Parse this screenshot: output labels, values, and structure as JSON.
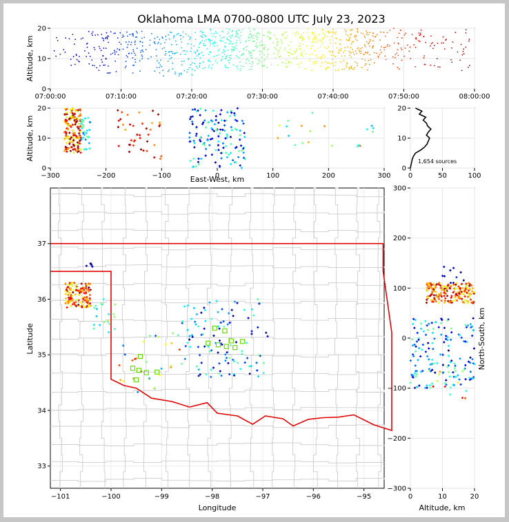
{
  "title": "Oklahoma LMA 0700-0800 UTC July 23, 2023",
  "source_count_label": "1,654 sources",
  "colors": {
    "state_border": "#e00000",
    "county_lines": "#c8c8c8",
    "station_marker": "#66dd00",
    "frame_bg": "#c6c6c6"
  },
  "chart_data": [
    {
      "id": "time-altitude",
      "type": "scatter",
      "xlabel": "",
      "ylabel": "Altitude, km",
      "x_ticks": [
        "07:00:00",
        "07:10:00",
        "07:20:00",
        "07:30:00",
        "07:40:00",
        "07:50:00",
        "08:00:00"
      ],
      "xlim_minutes": [
        0,
        60
      ],
      "y_ticks": [
        "0",
        "10",
        "20"
      ],
      "ylim": [
        0,
        20
      ],
      "color_by": "time (blue → red)",
      "clusters": [
        {
          "t_range": [
            0,
            5
          ],
          "alt_range": [
            6,
            18
          ],
          "count": 25
        },
        {
          "t_range": [
            5,
            15
          ],
          "alt_range": [
            5,
            19
          ],
          "count": 140
        },
        {
          "t_range": [
            15,
            21
          ],
          "alt_range": [
            4,
            19
          ],
          "count": 110
        },
        {
          "t_range": [
            21,
            29
          ],
          "alt_range": [
            6,
            20
          ],
          "count": 230
        },
        {
          "t_range": [
            29,
            36
          ],
          "alt_range": [
            7,
            19
          ],
          "count": 160
        },
        {
          "t_range": [
            36,
            45
          ],
          "alt_range": [
            6,
            20
          ],
          "count": 220
        },
        {
          "t_range": [
            45,
            53
          ],
          "alt_range": [
            6,
            20
          ],
          "count": 90
        },
        {
          "t_range": [
            53,
            60
          ],
          "alt_range": [
            5,
            20
          ],
          "count": 40
        }
      ]
    },
    {
      "id": "east-west-altitude",
      "type": "scatter",
      "xlabel": "East-West, km",
      "ylabel": "Altitude, km",
      "x_ticks": [
        "−300",
        "−200",
        "−100",
        "0",
        "100",
        "200",
        "300"
      ],
      "xlim": [
        -300,
        300
      ],
      "y_ticks": [
        "0",
        "10",
        "20"
      ],
      "ylim": [
        0,
        20
      ],
      "clusters": [
        {
          "ew_range": [
            -275,
            -245
          ],
          "alt_range": [
            5,
            20
          ]
        },
        {
          "ew_range": [
            -245,
            -230
          ],
          "alt_range": [
            5,
            17
          ]
        },
        {
          "ew_range": [
            -180,
            -100
          ],
          "alt_range": [
            3,
            20
          ]
        },
        {
          "ew_range": [
            -50,
            50
          ],
          "alt_range": [
            0,
            20
          ]
        },
        {
          "ew_range": [
            100,
            290
          ],
          "alt_range": [
            5,
            20
          ]
        }
      ]
    },
    {
      "id": "altitude-histogram",
      "type": "line",
      "xlim": [
        0,
        100
      ],
      "x_ticks": [
        "0",
        "50",
        "100"
      ],
      "ylim": [
        0,
        20
      ],
      "y_ticks": [
        "0",
        "10",
        "20"
      ],
      "annotation": "1,654 sources",
      "profile": [
        [
          0,
          0
        ],
        [
          1,
          1
        ],
        [
          2,
          2
        ],
        [
          3,
          3
        ],
        [
          5,
          4
        ],
        [
          8,
          5
        ],
        [
          16,
          6
        ],
        [
          22,
          7
        ],
        [
          26,
          8
        ],
        [
          28,
          9
        ],
        [
          30,
          10
        ],
        [
          25,
          11
        ],
        [
          28,
          12
        ],
        [
          32,
          13
        ],
        [
          27,
          14
        ],
        [
          25,
          15
        ],
        [
          20,
          16
        ],
        [
          24,
          17
        ],
        [
          14,
          18
        ],
        [
          18,
          19
        ],
        [
          8,
          20
        ]
      ]
    },
    {
      "id": "plan-view-map",
      "type": "scatter",
      "xlabel": "Longitude",
      "ylabel": "Latitude",
      "x_ticks": [
        "−101",
        "−100",
        "−99",
        "−98",
        "−97",
        "−96",
        "−95"
      ],
      "xlim": [
        -101.2,
        -94.6
      ],
      "y_ticks": [
        "33",
        "34",
        "35",
        "36",
        "37"
      ],
      "ylim": [
        32.6,
        38.0
      ],
      "stations": [
        {
          "lon": -99.42,
          "lat": 34.97
        },
        {
          "lon": -99.57,
          "lat": 34.76
        },
        {
          "lon": -99.45,
          "lat": 34.72
        },
        {
          "lon": -99.5,
          "lat": 34.55
        },
        {
          "lon": -99.3,
          "lat": 34.68
        },
        {
          "lon": -99.09,
          "lat": 34.69
        },
        {
          "lon": -97.95,
          "lat": 35.48
        },
        {
          "lon": -97.75,
          "lat": 35.43
        },
        {
          "lon": -98.08,
          "lat": 35.21
        },
        {
          "lon": -97.88,
          "lat": 35.18
        },
        {
          "lon": -97.62,
          "lat": 35.25
        },
        {
          "lon": -97.55,
          "lat": 35.13
        },
        {
          "lon": -97.4,
          "lat": 35.24
        },
        {
          "lon": -97.72,
          "lat": 35.15
        }
      ]
    },
    {
      "id": "ns-altitude",
      "type": "scatter",
      "xlabel": "Altitude, km",
      "ylabel": "North-South, km",
      "x_ticks": [
        "0",
        "10",
        "20"
      ],
      "xlim": [
        0,
        20
      ],
      "y_ticks": [
        "−300",
        "−200",
        "−100",
        "0",
        "100",
        "200",
        "300"
      ],
      "ylim": [
        -300,
        300
      ]
    }
  ]
}
